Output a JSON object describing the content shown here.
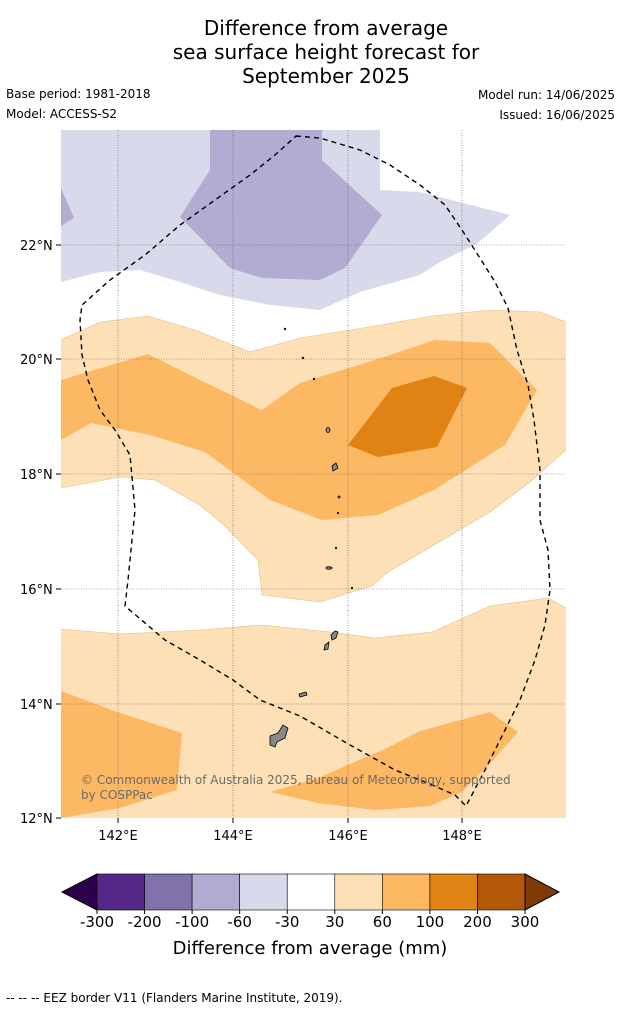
{
  "title": {
    "line1": "Difference from average",
    "line2": "sea surface height forecast for",
    "line3": "September 2025"
  },
  "meta": {
    "base_period": "Base period: 1981-2018",
    "model": "Model: ACCESS-S2",
    "model_run": "Model run: 14/06/2025",
    "issued": "Issued: 16/06/2025"
  },
  "map": {
    "lat_labels": [
      "22°N",
      "20°N",
      "18°N",
      "16°N",
      "14°N",
      "12°N"
    ],
    "lon_labels": [
      "142°E",
      "144°E",
      "146°E",
      "148°E"
    ],
    "copyright_line1": "© Commonwealth of Australia 2025, Bureau of Meteorology, supported",
    "copyright_line2": "by COSPPac"
  },
  "colorbar": {
    "ticks": [
      "-300",
      "-200",
      "-100",
      "-60",
      "-30",
      "30",
      "60",
      "100",
      "200",
      "300"
    ],
    "title": "Difference from average (mm)",
    "colors": [
      "#2d004b",
      "#542788",
      "#8073ac",
      "#b2abd2",
      "#d8daeb",
      "#ffffff",
      "#fee0b6",
      "#fdb863",
      "#e08214",
      "#b35806",
      "#7f3b08"
    ]
  },
  "footnote": "--  --  -- EEZ border V11 (Flanders Marine Institute, 2019)."
}
